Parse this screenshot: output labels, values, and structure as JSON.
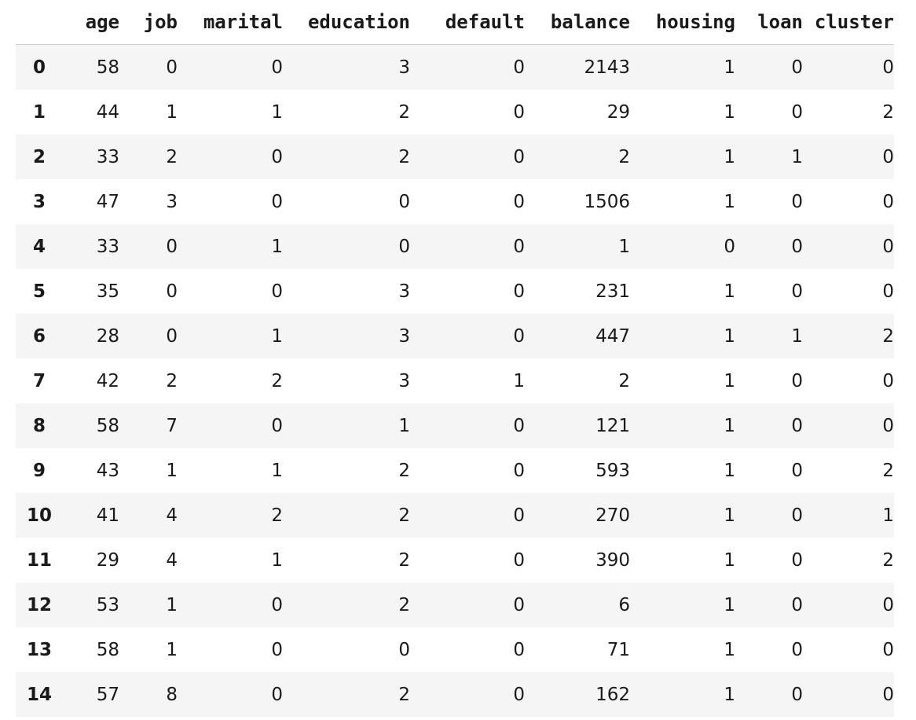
{
  "table": {
    "columns": [
      "",
      "age",
      "job",
      "marital",
      "education",
      "default",
      "balance",
      "housing",
      "loan",
      "cluster"
    ],
    "rows": [
      {
        "index": "0",
        "cells": [
          "58",
          "0",
          "0",
          "3",
          "0",
          "2143",
          "1",
          "0",
          "0"
        ]
      },
      {
        "index": "1",
        "cells": [
          "44",
          "1",
          "1",
          "2",
          "0",
          "29",
          "1",
          "0",
          "2"
        ]
      },
      {
        "index": "2",
        "cells": [
          "33",
          "2",
          "0",
          "2",
          "0",
          "2",
          "1",
          "1",
          "0"
        ]
      },
      {
        "index": "3",
        "cells": [
          "47",
          "3",
          "0",
          "0",
          "0",
          "1506",
          "1",
          "0",
          "0"
        ]
      },
      {
        "index": "4",
        "cells": [
          "33",
          "0",
          "1",
          "0",
          "0",
          "1",
          "0",
          "0",
          "0"
        ]
      },
      {
        "index": "5",
        "cells": [
          "35",
          "0",
          "0",
          "3",
          "0",
          "231",
          "1",
          "0",
          "0"
        ]
      },
      {
        "index": "6",
        "cells": [
          "28",
          "0",
          "1",
          "3",
          "0",
          "447",
          "1",
          "1",
          "2"
        ]
      },
      {
        "index": "7",
        "cells": [
          "42",
          "2",
          "2",
          "3",
          "1",
          "2",
          "1",
          "0",
          "0"
        ]
      },
      {
        "index": "8",
        "cells": [
          "58",
          "7",
          "0",
          "1",
          "0",
          "121",
          "1",
          "0",
          "0"
        ]
      },
      {
        "index": "9",
        "cells": [
          "43",
          "1",
          "1",
          "2",
          "0",
          "593",
          "1",
          "0",
          "2"
        ]
      },
      {
        "index": "10",
        "cells": [
          "41",
          "4",
          "2",
          "2",
          "0",
          "270",
          "1",
          "0",
          "1"
        ]
      },
      {
        "index": "11",
        "cells": [
          "29",
          "4",
          "1",
          "2",
          "0",
          "390",
          "1",
          "0",
          "2"
        ]
      },
      {
        "index": "12",
        "cells": [
          "53",
          "1",
          "0",
          "2",
          "0",
          "6",
          "1",
          "0",
          "0"
        ]
      },
      {
        "index": "13",
        "cells": [
          "58",
          "1",
          "0",
          "0",
          "0",
          "71",
          "1",
          "0",
          "0"
        ]
      },
      {
        "index": "14",
        "cells": [
          "57",
          "8",
          "0",
          "2",
          "0",
          "162",
          "1",
          "0",
          "0"
        ]
      }
    ]
  },
  "colors": {
    "stripe": "#f5f5f5",
    "text": "#1a1a1a",
    "header_rule": "#cfcfcf"
  }
}
